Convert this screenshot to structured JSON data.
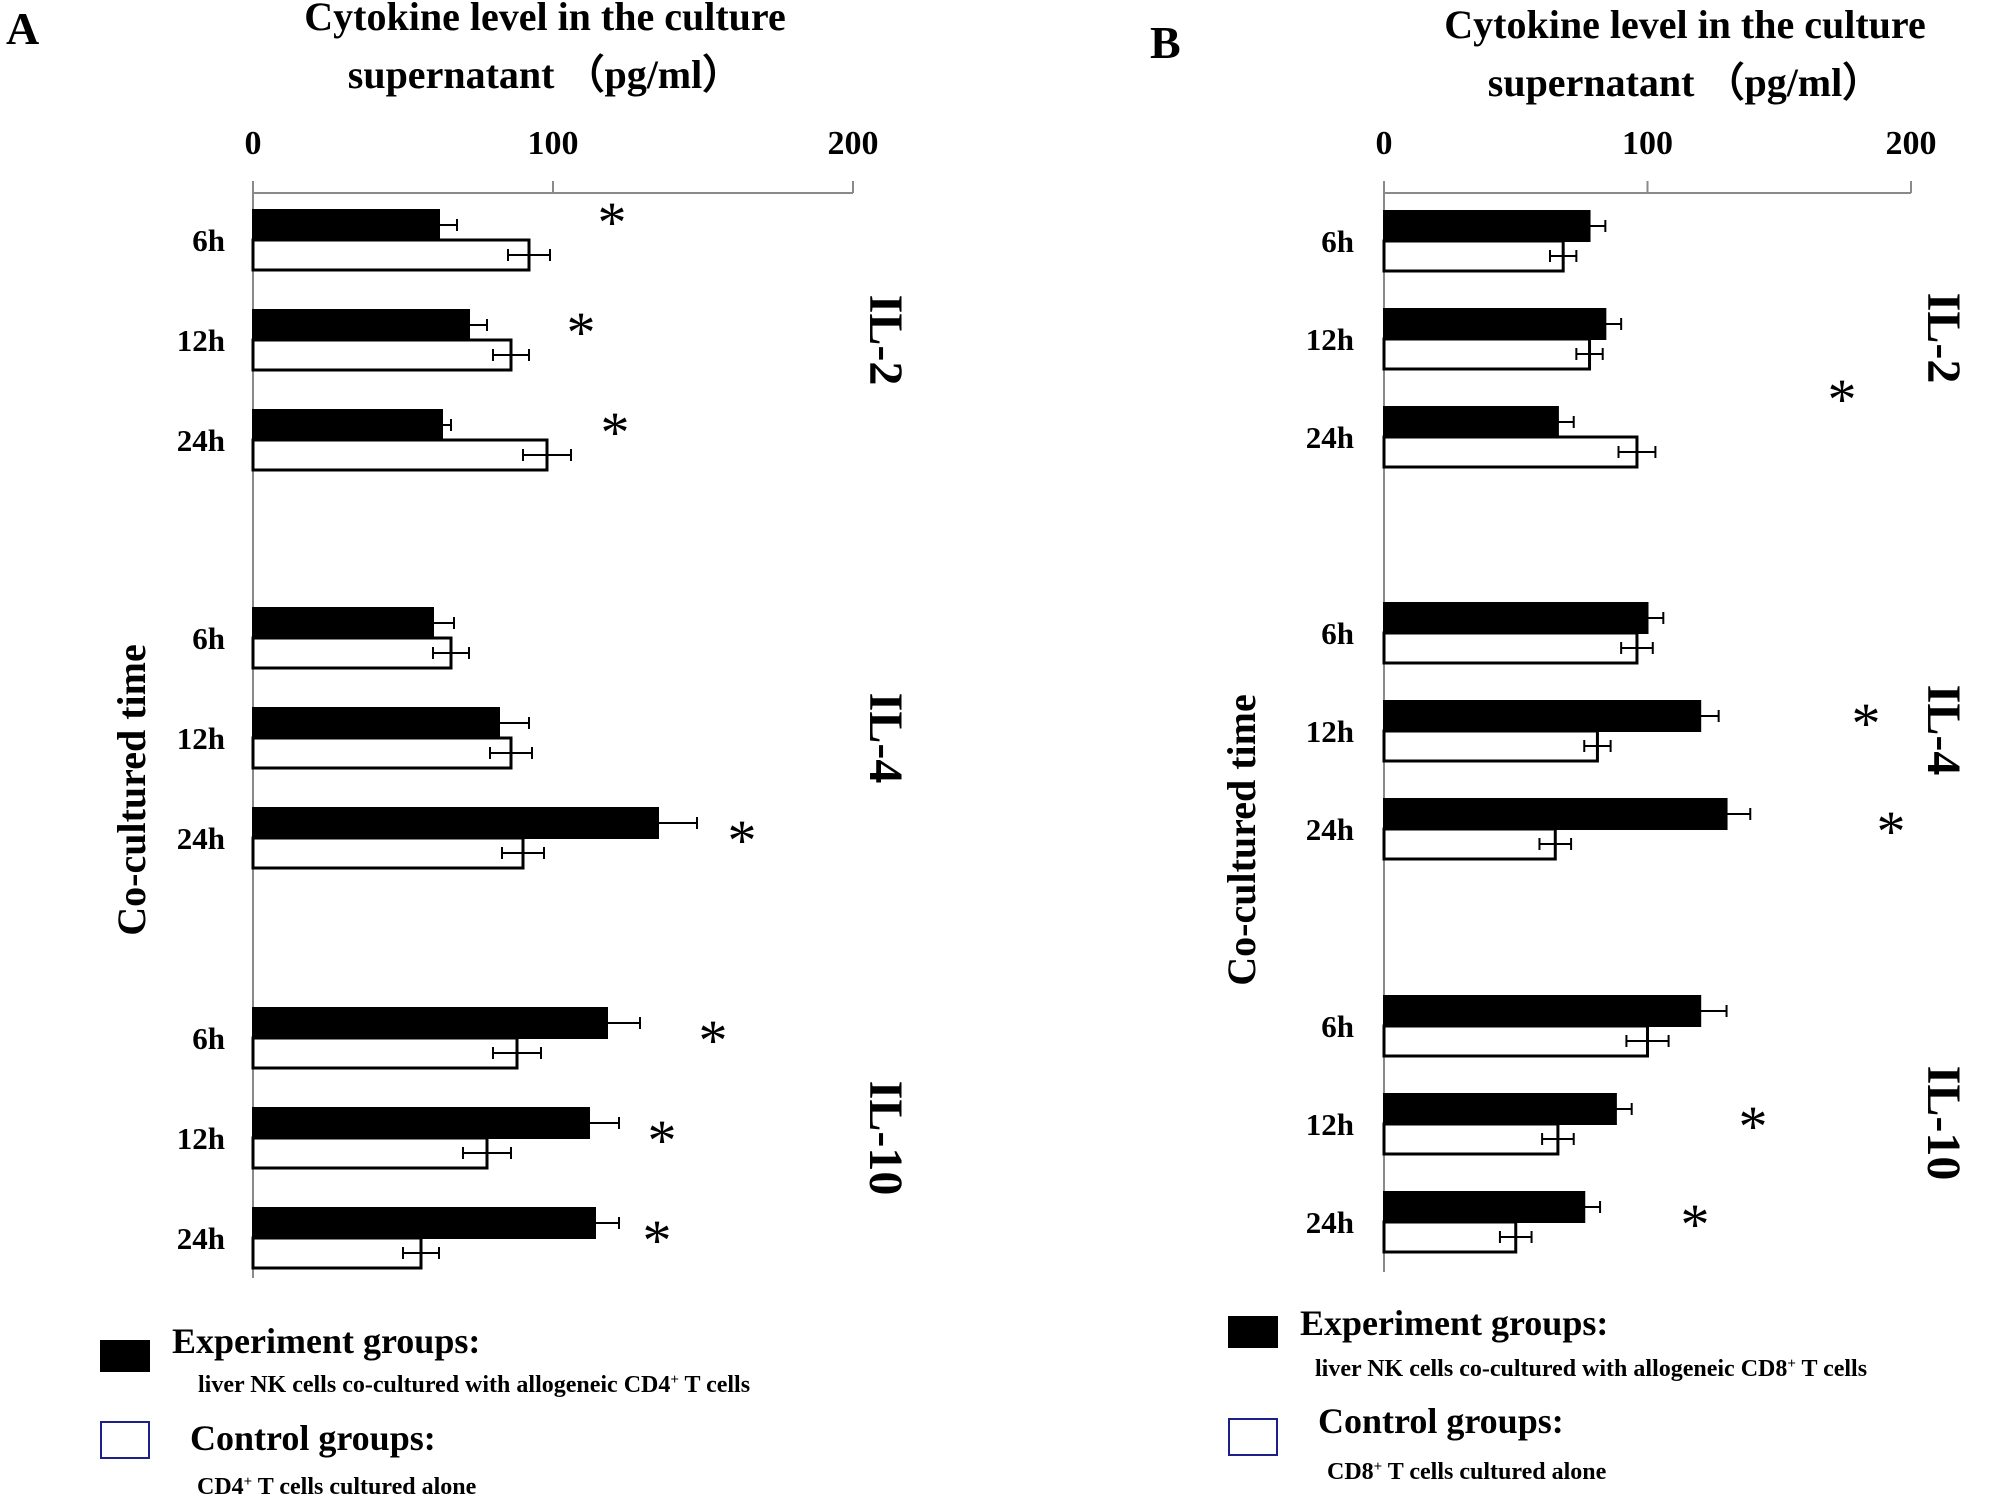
{
  "chart_data": [
    {
      "panel": "A",
      "type": "bar",
      "orientation": "horizontal",
      "title_line1": "Cytokine level in the culture",
      "title_line2": "supernatant （pg/ml）",
      "xlabel": "Cytokine level in the culture supernatant （pg/ml）",
      "ylabel": "Co-cultured time",
      "xlim": [
        0,
        200
      ],
      "xticks": [
        "0",
        "100",
        "200"
      ],
      "groups": [
        {
          "cytokine": "IL-2",
          "categories": [
            "6h",
            "12h",
            "24h"
          ],
          "experiment": [
            62,
            72,
            63
          ],
          "experiment_err": [
            6,
            6,
            3
          ],
          "control": [
            92,
            86,
            98
          ],
          "control_err": [
            7,
            6,
            8
          ],
          "significant": [
            true,
            true,
            true
          ]
        },
        {
          "cytokine": "IL-4",
          "categories": [
            "6h",
            "12h",
            "24h"
          ],
          "experiment": [
            60,
            82,
            135
          ],
          "experiment_err": [
            7,
            10,
            13
          ],
          "control": [
            66,
            86,
            90
          ],
          "control_err": [
            6,
            7,
            7
          ],
          "significant": [
            false,
            false,
            true
          ]
        },
        {
          "cytokine": "IL-10",
          "categories": [
            "6h",
            "12h",
            "24h"
          ],
          "experiment": [
            118,
            112,
            114
          ],
          "experiment_err": [
            11,
            10,
            8
          ],
          "control": [
            88,
            78,
            56
          ],
          "control_err": [
            8,
            8,
            6
          ],
          "significant": [
            true,
            true,
            true
          ]
        }
      ],
      "series": [
        {
          "name": "Experiment groups:",
          "description": "liver NK cells co-cultured with allogeneic CD4⁺ T cells",
          "color": "#000000"
        },
        {
          "name": "Control groups:",
          "description": "CD4⁺ T cells cultured alone",
          "color": "#ffffff"
        }
      ]
    },
    {
      "panel": "B",
      "type": "bar",
      "orientation": "horizontal",
      "title_line1": "Cytokine level in the culture",
      "title_line2": "supernatant （pg/ml）",
      "xlabel": "Cytokine level in the culture supernatant （pg/ml）",
      "ylabel": "Co-cultured time",
      "xlim": [
        0,
        200
      ],
      "xticks": [
        "0",
        "100",
        "200"
      ],
      "groups": [
        {
          "cytokine": "IL-2",
          "categories": [
            "6h",
            "12h",
            "24h"
          ],
          "experiment": [
            78,
            84,
            66
          ],
          "experiment_err": [
            6,
            6,
            6
          ],
          "control": [
            68,
            78,
            96
          ],
          "control_err": [
            5,
            5,
            7
          ],
          "significant": [
            false,
            false,
            true
          ]
        },
        {
          "cytokine": "IL-4",
          "categories": [
            "6h",
            "12h",
            "24h"
          ],
          "experiment": [
            100,
            120,
            130
          ],
          "experiment_err": [
            6,
            7,
            9
          ],
          "control": [
            96,
            81,
            65
          ],
          "control_err": [
            6,
            5,
            6
          ],
          "significant": [
            false,
            true,
            true
          ]
        },
        {
          "cytokine": "IL-10",
          "categories": [
            "6h",
            "12h",
            "24h"
          ],
          "experiment": [
            120,
            88,
            76
          ],
          "experiment_err": [
            10,
            6,
            6
          ],
          "control": [
            100,
            66,
            50
          ],
          "control_err": [
            8,
            6,
            6
          ],
          "significant": [
            false,
            true,
            true
          ]
        }
      ],
      "series": [
        {
          "name": "Experiment groups:",
          "description": "liver NK cells co-cultured with allogeneic CD8⁺ T cells",
          "color": "#000000"
        },
        {
          "name": "Control groups:",
          "description": "CD8⁺ T cells cultured alone",
          "color": "#ffffff"
        }
      ]
    }
  ],
  "legend_swatch_border": "#1f1f8a",
  "significance_marker": "*"
}
